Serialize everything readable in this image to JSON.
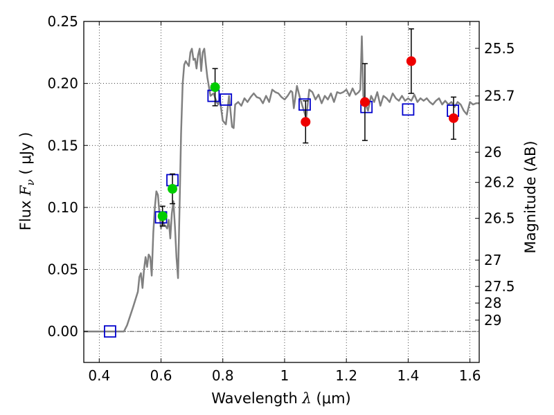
{
  "chart_data": {
    "type": "scatter",
    "xlabel": {
      "prefix": "Wavelength  ",
      "symbol": "λ",
      "unit": "(μm)"
    },
    "ylabel": {
      "prefix": "Flux  ",
      "symbol": "F",
      "subscript": "ν",
      "unit": "(  μJy )"
    },
    "y2label": "Magnitude (AB)",
    "xlim": [
      0.35,
      1.63
    ],
    "ylim": [
      -0.025,
      0.25
    ],
    "grid": true,
    "x_ticks": [
      0.4,
      0.6,
      0.8,
      1.0,
      1.2,
      1.4,
      1.6
    ],
    "x_tick_labels": [
      "0.4",
      "0.6",
      "0.8",
      "1",
      "1.2",
      "1.4",
      "1.6"
    ],
    "y_ticks": [
      0.0,
      0.05,
      0.1,
      0.15,
      0.2,
      0.25
    ],
    "y_tick_labels": [
      "0.00",
      "0.05",
      "0.10",
      "0.15",
      "0.20",
      "0.25"
    ],
    "magnitude_ticks": [
      {
        "label": "25.5",
        "flux": 0.2283
      },
      {
        "label": "25.7",
        "flux": 0.1899
      },
      {
        "label": "26",
        "flux": 0.1445
      },
      {
        "label": "26.2",
        "flux": 0.1202
      },
      {
        "label": "26.5",
        "flux": 0.0912
      },
      {
        "label": "27",
        "flux": 0.0575
      },
      {
        "label": "27.5",
        "flux": 0.0363
      },
      {
        "label": "28",
        "flux": 0.0229
      },
      {
        "label": "29",
        "flux": 0.0091
      }
    ],
    "series": [
      {
        "kind": "line",
        "color": "#808080",
        "x": [
          0.35,
          0.48,
          0.49,
          0.51,
          0.525,
          0.53,
          0.535,
          0.54,
          0.545,
          0.55,
          0.555,
          0.56,
          0.565,
          0.57,
          0.575,
          0.58,
          0.585,
          0.59,
          0.595,
          0.6,
          0.605,
          0.61,
          0.615,
          0.62,
          0.625,
          0.63,
          0.635,
          0.64,
          0.645,
          0.65,
          0.655,
          0.66,
          0.665,
          0.67,
          0.675,
          0.68,
          0.685,
          0.69,
          0.695,
          0.7,
          0.705,
          0.71,
          0.715,
          0.72,
          0.725,
          0.73,
          0.735,
          0.74,
          0.745,
          0.75,
          0.76,
          0.77,
          0.78,
          0.785,
          0.79,
          0.8,
          0.81,
          0.82,
          0.83,
          0.835,
          0.84,
          0.85,
          0.86,
          0.87,
          0.88,
          0.89,
          0.9,
          0.91,
          0.92,
          0.93,
          0.94,
          0.95,
          0.96,
          0.97,
          0.98,
          0.99,
          1.0,
          1.01,
          1.02,
          1.025,
          1.03,
          1.04,
          1.05,
          1.06,
          1.07,
          1.08,
          1.09,
          1.1,
          1.11,
          1.12,
          1.13,
          1.14,
          1.15,
          1.16,
          1.17,
          1.18,
          1.19,
          1.2,
          1.21,
          1.22,
          1.23,
          1.24,
          1.245,
          1.25,
          1.255,
          1.26,
          1.27,
          1.28,
          1.29,
          1.3,
          1.31,
          1.32,
          1.33,
          1.34,
          1.35,
          1.36,
          1.37,
          1.38,
          1.39,
          1.4,
          1.41,
          1.42,
          1.43,
          1.44,
          1.45,
          1.46,
          1.47,
          1.48,
          1.49,
          1.5,
          1.51,
          1.52,
          1.53,
          1.54,
          1.55,
          1.56,
          1.57,
          1.58,
          1.59,
          1.6,
          1.61,
          1.62,
          1.63
        ],
        "y": [
          0.0,
          0.0,
          0.005,
          0.02,
          0.032,
          0.044,
          0.047,
          0.035,
          0.05,
          0.06,
          0.052,
          0.062,
          0.06,
          0.045,
          0.08,
          0.1,
          0.113,
          0.11,
          0.095,
          0.083,
          0.09,
          0.086,
          0.085,
          0.083,
          0.09,
          0.075,
          0.095,
          0.105,
          0.085,
          0.06,
          0.043,
          0.1,
          0.16,
          0.2,
          0.215,
          0.218,
          0.216,
          0.214,
          0.225,
          0.228,
          0.219,
          0.22,
          0.212,
          0.223,
          0.228,
          0.21,
          0.225,
          0.228,
          0.216,
          0.205,
          0.19,
          0.192,
          0.185,
          0.183,
          0.188,
          0.17,
          0.167,
          0.19,
          0.165,
          0.164,
          0.183,
          0.185,
          0.182,
          0.188,
          0.185,
          0.189,
          0.192,
          0.189,
          0.188,
          0.184,
          0.19,
          0.185,
          0.195,
          0.193,
          0.192,
          0.189,
          0.187,
          0.19,
          0.194,
          0.193,
          0.18,
          0.198,
          0.188,
          0.18,
          0.172,
          0.195,
          0.193,
          0.187,
          0.191,
          0.184,
          0.19,
          0.187,
          0.192,
          0.185,
          0.193,
          0.192,
          0.193,
          0.195,
          0.19,
          0.196,
          0.191,
          0.193,
          0.195,
          0.238,
          0.19,
          0.185,
          0.178,
          0.19,
          0.185,
          0.193,
          0.182,
          0.19,
          0.188,
          0.185,
          0.192,
          0.188,
          0.186,
          0.19,
          0.186,
          0.188,
          0.186,
          0.191,
          0.185,
          0.188,
          0.186,
          0.188,
          0.185,
          0.183,
          0.186,
          0.188,
          0.183,
          0.186,
          0.183,
          0.185,
          0.181,
          0.185,
          0.183,
          0.178,
          0.175,
          0.185,
          0.183,
          0.184,
          0.184
        ]
      },
      {
        "kind": "open-square",
        "color": "#0000cc",
        "x": [
          0.435,
          0.6,
          0.637,
          0.77,
          0.81,
          1.065,
          1.265,
          1.4,
          1.545
        ],
        "y": [
          0.0,
          0.092,
          0.122,
          0.19,
          0.187,
          0.183,
          0.181,
          0.179,
          0.178
        ]
      },
      {
        "kind": "filled-circle",
        "color": "#00cc00",
        "x": [
          0.605,
          0.637,
          0.775
        ],
        "y": [
          0.093,
          0.115,
          0.197
        ],
        "yerr": [
          0.008,
          0.012,
          0.015
        ]
      },
      {
        "kind": "filled-circle",
        "color": "#ee0000",
        "x": [
          1.068,
          1.26,
          1.41,
          1.547
        ],
        "y": [
          0.169,
          0.185,
          0.218,
          0.172
        ],
        "yerr": [
          0.017,
          0.031,
          0.026,
          0.017
        ]
      }
    ]
  }
}
